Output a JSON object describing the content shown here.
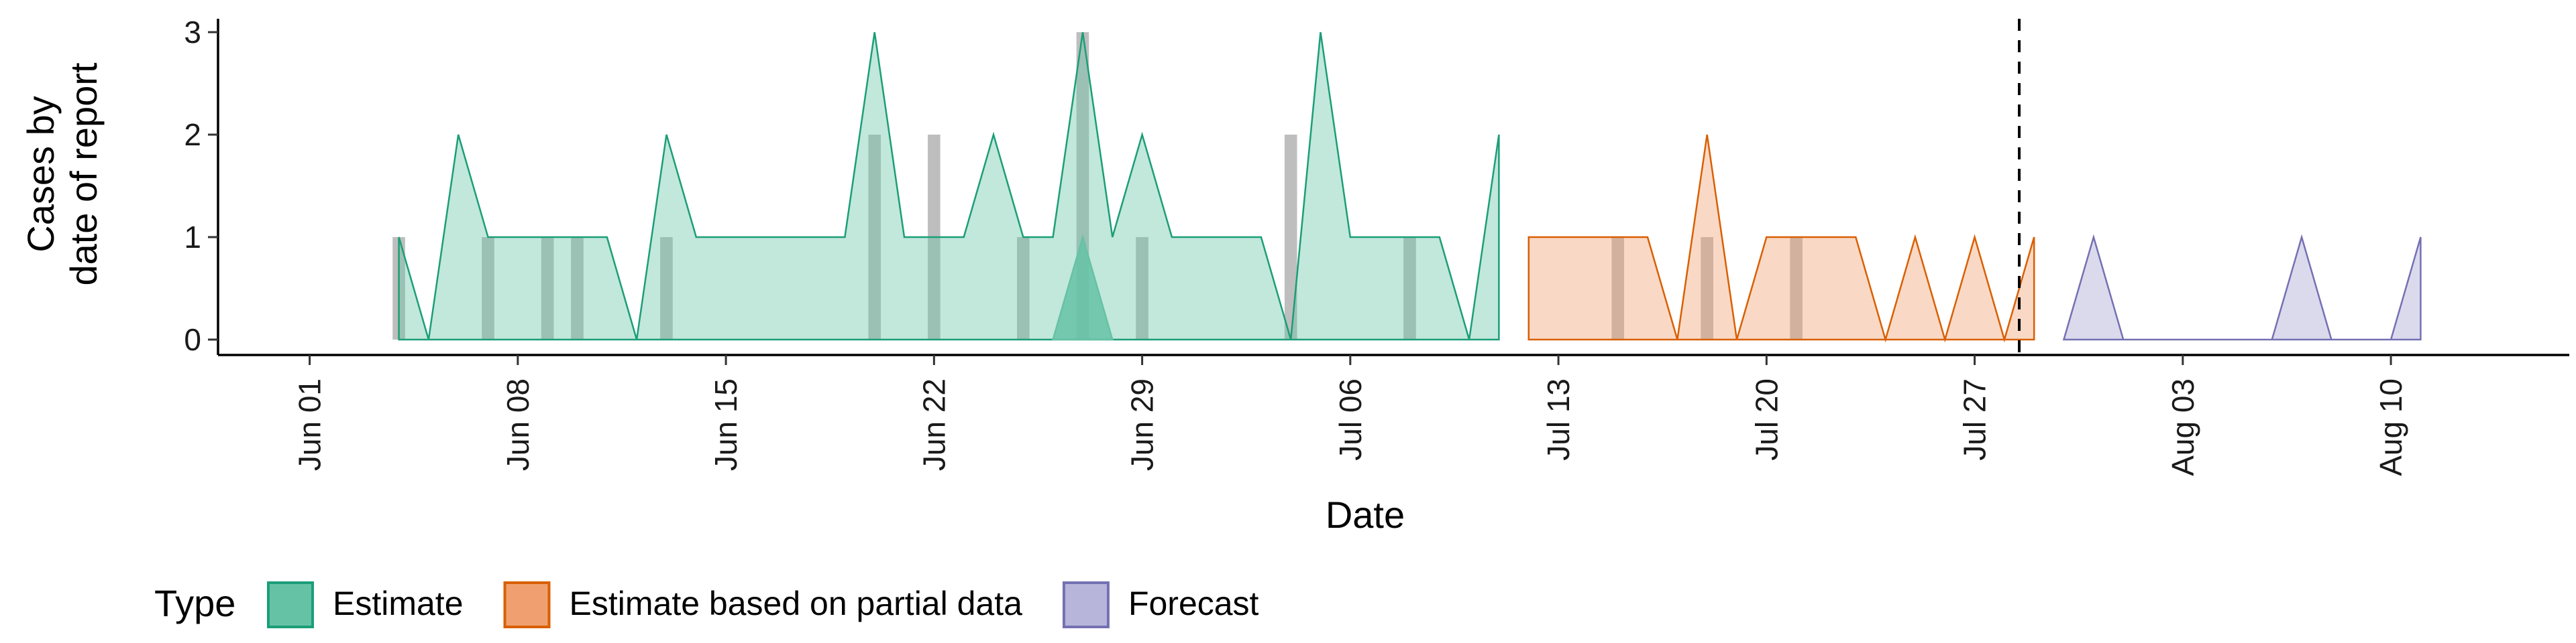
{
  "chart_data": {
    "type": "area",
    "xlabel": "Date",
    "ylabel": [
      "Cases by",
      "date of report"
    ],
    "ylim": [
      0,
      3.2
    ],
    "y_ticks": [
      0,
      1,
      2,
      3
    ],
    "x_ticks": [
      {
        "date": "2020-06-01",
        "label": "Jun 01"
      },
      {
        "date": "2020-06-08",
        "label": "Jun 08"
      },
      {
        "date": "2020-06-15",
        "label": "Jun 15"
      },
      {
        "date": "2020-06-22",
        "label": "Jun 22"
      },
      {
        "date": "2020-06-29",
        "label": "Jun 29"
      },
      {
        "date": "2020-07-06",
        "label": "Jul 06"
      },
      {
        "date": "2020-07-13",
        "label": "Jul 13"
      },
      {
        "date": "2020-07-20",
        "label": "Jul 20"
      },
      {
        "date": "2020-07-27",
        "label": "Jul 27"
      },
      {
        "date": "2020-08-03",
        "label": "Aug 03"
      },
      {
        "date": "2020-08-10",
        "label": "Aug 10"
      }
    ],
    "xlim": [
      "2020-05-27",
      "2020-08-16"
    ],
    "forecast_line_date": "2020-07-28",
    "legend": {
      "title": "Type",
      "placement": "bottom",
      "entries": [
        {
          "label": "Estimate",
          "fill": "#66c2a5",
          "stroke": "#1b9e77"
        },
        {
          "label": "Estimate based on partial data",
          "fill": "#f0a070",
          "stroke": "#d95f02"
        },
        {
          "label": "Forecast",
          "fill": "#b8b5db",
          "stroke": "#7570b3"
        }
      ]
    },
    "bars": {
      "color": "#a8a8a8",
      "x": [
        "2020-06-04",
        "2020-06-07",
        "2020-06-09",
        "2020-06-10",
        "2020-06-13",
        "2020-06-20",
        "2020-06-22",
        "2020-06-25",
        "2020-06-27",
        "2020-06-29",
        "2020-07-04",
        "2020-07-08",
        "2020-07-15",
        "2020-07-18",
        "2020-07-21"
      ],
      "y": [
        1,
        1,
        1,
        1,
        1,
        2,
        2,
        1,
        3,
        1,
        2,
        1,
        1,
        1,
        1
      ]
    },
    "series": [
      {
        "name": "Estimate",
        "fill": "#66c2a5",
        "stroke": "#1b9e77",
        "band_opacity": 0.4,
        "x": [
          "2020-06-04",
          "2020-06-05",
          "2020-06-06",
          "2020-06-07",
          "2020-06-08",
          "2020-06-09",
          "2020-06-10",
          "2020-06-11",
          "2020-06-12",
          "2020-06-13",
          "2020-06-14",
          "2020-06-15",
          "2020-06-16",
          "2020-06-17",
          "2020-06-18",
          "2020-06-19",
          "2020-06-20",
          "2020-06-21",
          "2020-06-22",
          "2020-06-23",
          "2020-06-24",
          "2020-06-25",
          "2020-06-26",
          "2020-06-27",
          "2020-06-28",
          "2020-06-29",
          "2020-06-30",
          "2020-07-01",
          "2020-07-02",
          "2020-07-03",
          "2020-07-04",
          "2020-07-05",
          "2020-07-06",
          "2020-07-07",
          "2020-07-08",
          "2020-07-09",
          "2020-07-10",
          "2020-07-11"
        ],
        "upper": [
          1,
          0,
          2,
          1,
          1,
          1,
          1,
          1,
          0,
          2,
          1,
          1,
          1,
          1,
          1,
          1,
          3,
          1,
          1,
          1,
          2,
          1,
          1,
          3,
          1,
          2,
          1,
          1,
          1,
          1,
          0,
          3,
          1,
          1,
          1,
          1,
          0,
          2
        ],
        "lower": [
          0,
          0,
          0,
          0,
          0,
          0,
          0,
          0,
          0,
          0,
          0,
          0,
          0,
          0,
          0,
          0,
          0,
          0,
          0,
          0,
          0,
          0,
          0,
          0,
          0,
          0,
          0,
          0,
          0,
          0,
          0,
          0,
          0,
          0,
          0,
          0,
          0,
          0
        ],
        "inner": {
          "opacity": 0.85,
          "x": [
            "2020-06-26",
            "2020-06-27",
            "2020-06-28"
          ],
          "upper": [
            0,
            1,
            0
          ],
          "lower": [
            0,
            0,
            0
          ]
        }
      },
      {
        "name": "Estimate based on partial data",
        "fill": "#f0a070",
        "stroke": "#d95f02",
        "band_opacity": 0.4,
        "x": [
          "2020-07-12",
          "2020-07-13",
          "2020-07-14",
          "2020-07-15",
          "2020-07-16",
          "2020-07-17",
          "2020-07-18",
          "2020-07-19",
          "2020-07-20",
          "2020-07-21",
          "2020-07-22",
          "2020-07-23",
          "2020-07-24",
          "2020-07-25",
          "2020-07-26",
          "2020-07-27",
          "2020-07-28",
          "2020-07-29"
        ],
        "upper": [
          1,
          1,
          1,
          1,
          1,
          0,
          2,
          0,
          1,
          1,
          1,
          1,
          0,
          1,
          0,
          1,
          0,
          1
        ],
        "lower": [
          0,
          0,
          0,
          0,
          0,
          0,
          0,
          0,
          0,
          0,
          0,
          0,
          0,
          0,
          0,
          0,
          0,
          0
        ]
      },
      {
        "name": "Forecast",
        "fill": "#b8b5db",
        "stroke": "#7570b3",
        "band_opacity": 0.5,
        "x": [
          "2020-07-30",
          "2020-07-31",
          "2020-08-01",
          "2020-08-02",
          "2020-08-03",
          "2020-08-04",
          "2020-08-05",
          "2020-08-06",
          "2020-08-07",
          "2020-08-08",
          "2020-08-09",
          "2020-08-10",
          "2020-08-11"
        ],
        "upper": [
          0,
          1,
          0,
          0,
          0,
          0,
          0,
          0,
          1,
          0,
          0,
          0,
          1
        ],
        "lower": [
          0,
          0,
          0,
          0,
          0,
          0,
          0,
          0,
          0,
          0,
          0,
          0,
          0
        ]
      }
    ]
  }
}
